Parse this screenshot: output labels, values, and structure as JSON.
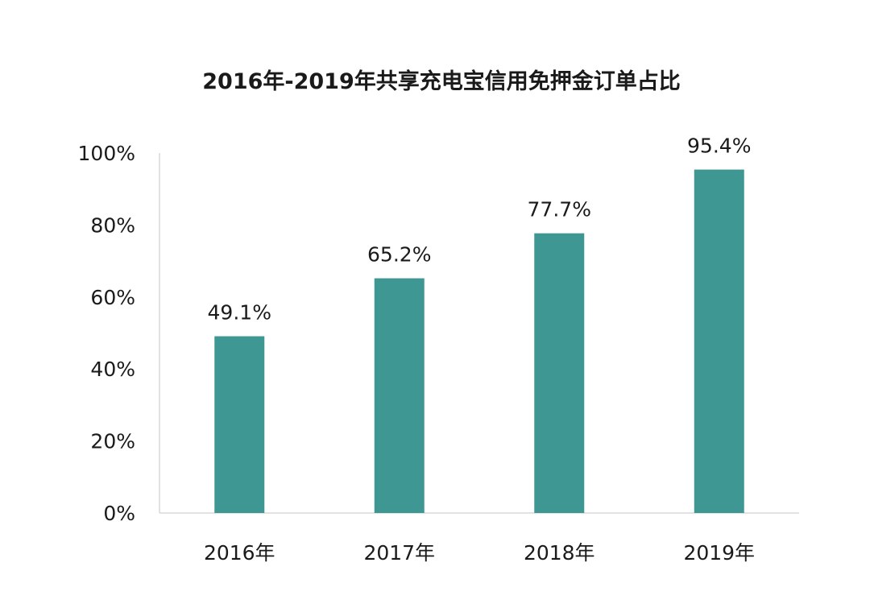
{
  "chart_data": {
    "type": "bar",
    "title": "2016年-2019年共享充电宝信用免押金订单占比",
    "categories": [
      "2016年",
      "2017年",
      "2018年",
      "2019年"
    ],
    "values": [
      49.1,
      65.2,
      77.7,
      95.4
    ],
    "data_labels": [
      "49.1%",
      "65.2%",
      "77.7%",
      "95.4%"
    ],
    "xlabel": "",
    "ylabel": "",
    "ylim": [
      0,
      100
    ],
    "yticks": [
      0,
      20,
      40,
      60,
      80,
      100
    ],
    "ytick_labels": [
      "0%",
      "20%",
      "40%",
      "60%",
      "80%",
      "100%"
    ],
    "grid": false,
    "legend": "none",
    "bar_color": "#3e9793",
    "axis_color": "#d9d9d9",
    "text_color": "#1a1a1a"
  }
}
